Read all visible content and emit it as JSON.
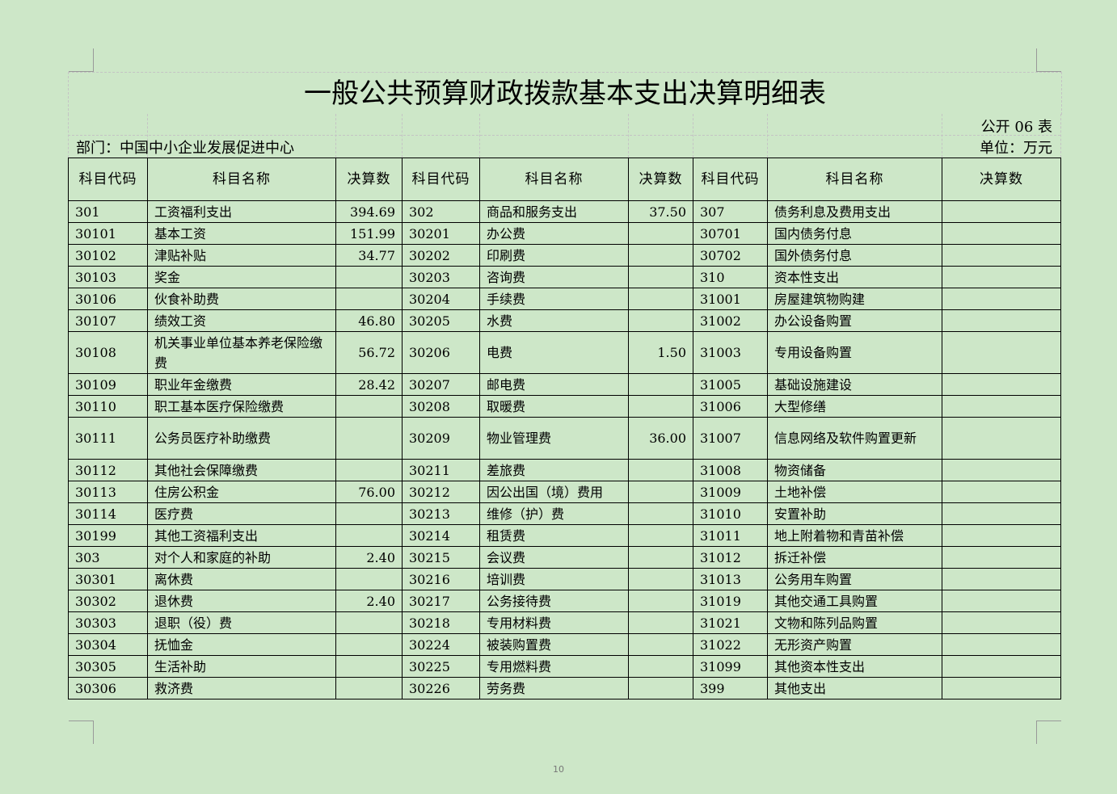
{
  "title": "一般公共预算财政拨款基本支出决算明细表",
  "form_no": "公开 06 表",
  "department": "部门：中国中小企业发展促进中心",
  "unit": "单位：万元",
  "headers": [
    "科目代码",
    "科目名称",
    "决算数",
    "科目代码",
    "科目名称",
    "决算数",
    "科目代码",
    "科目名称",
    "决算数"
  ],
  "rows": [
    {
      "cells": [
        "301",
        "工资福利支出",
        "394.69",
        "302",
        "商品和服务支出",
        "37.50",
        "307",
        "债务利息及费用支出",
        ""
      ]
    },
    {
      "cells": [
        "30101",
        "基本工资",
        "151.99",
        "30201",
        "办公费",
        "",
        "30701",
        "国内债务付息",
        ""
      ]
    },
    {
      "cells": [
        "30102",
        "津贴补贴",
        "34.77",
        "30202",
        "印刷费",
        "",
        "30702",
        "国外债务付息",
        ""
      ]
    },
    {
      "cells": [
        "30103",
        "奖金",
        "",
        "30203",
        "咨询费",
        "",
        "310",
        "资本性支出",
        ""
      ]
    },
    {
      "cells": [
        "30106",
        "伙食补助费",
        "",
        "30204",
        "手续费",
        "",
        "31001",
        "房屋建筑物购建",
        ""
      ]
    },
    {
      "cells": [
        "30107",
        "绩效工资",
        "46.80",
        "30205",
        "水费",
        "",
        "31002",
        "办公设备购置",
        ""
      ]
    },
    {
      "tall": true,
      "cells": [
        "30108",
        "机关事业单位基本养老保险缴费",
        "56.72",
        "30206",
        "电费",
        "1.50",
        "31003",
        "专用设备购置",
        ""
      ]
    },
    {
      "cells": [
        "30109",
        "职业年金缴费",
        "28.42",
        "30207",
        "邮电费",
        "",
        "31005",
        "基础设施建设",
        ""
      ]
    },
    {
      "cells": [
        "30110",
        "职工基本医疗保险缴费",
        "",
        "30208",
        "取暖费",
        "",
        "31006",
        "大型修缮",
        ""
      ]
    },
    {
      "tall": true,
      "cells": [
        "30111",
        "公务员医疗补助缴费",
        "",
        "30209",
        "物业管理费",
        "36.00",
        "31007",
        "信息网络及软件购置更新",
        ""
      ]
    },
    {
      "cells": [
        "30112",
        "其他社会保障缴费",
        "",
        "30211",
        "差旅费",
        "",
        "31008",
        "物资储备",
        ""
      ]
    },
    {
      "cells": [
        "30113",
        "住房公积金",
        "76.00",
        "30212",
        "因公出国（境）费用",
        "",
        "31009",
        "土地补偿",
        ""
      ]
    },
    {
      "cells": [
        "30114",
        "医疗费",
        "",
        "30213",
        "维修（护）费",
        "",
        "31010",
        "安置补助",
        ""
      ]
    },
    {
      "cells": [
        "30199",
        "其他工资福利支出",
        "",
        "30214",
        "租赁费",
        "",
        "31011",
        "地上附着物和青苗补偿",
        ""
      ]
    },
    {
      "cells": [
        "303",
        "对个人和家庭的补助",
        "2.40",
        "30215",
        "会议费",
        "",
        "31012",
        "拆迁补偿",
        ""
      ]
    },
    {
      "cells": [
        "30301",
        "离休费",
        "",
        "30216",
        "培训费",
        "",
        "31013",
        "公务用车购置",
        ""
      ]
    },
    {
      "cells": [
        "30302",
        "退休费",
        "2.40",
        "30217",
        "公务接待费",
        "",
        "31019",
        "其他交通工具购置",
        ""
      ]
    },
    {
      "cells": [
        "30303",
        "退职（役）费",
        "",
        "30218",
        "专用材料费",
        "",
        "31021",
        "文物和陈列品购置",
        ""
      ]
    },
    {
      "cells": [
        "30304",
        "抚恤金",
        "",
        "30224",
        "被装购置费",
        "",
        "31022",
        "无形资产购置",
        ""
      ]
    },
    {
      "cells": [
        "30305",
        "生活补助",
        "",
        "30225",
        "专用燃料费",
        "",
        "31099",
        "其他资本性支出",
        ""
      ]
    },
    {
      "cells": [
        "30306",
        "救济费",
        "",
        "30226",
        "劳务费",
        "",
        "399",
        "其他支出",
        ""
      ]
    }
  ],
  "page_number": "10"
}
